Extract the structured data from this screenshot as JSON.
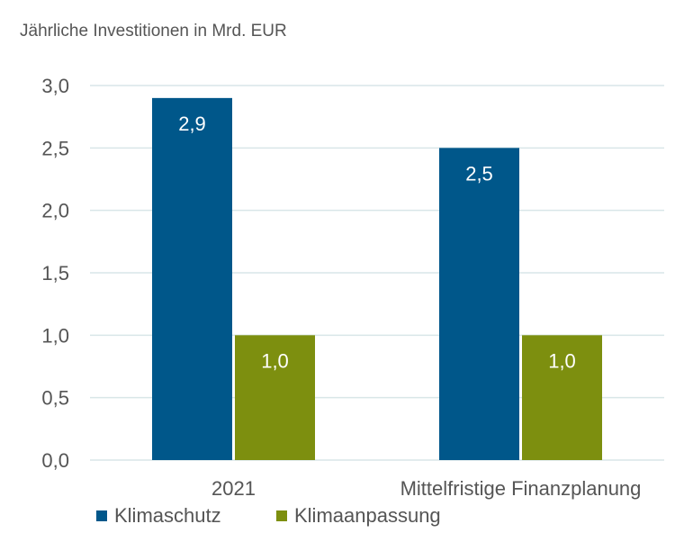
{
  "chart_data": {
    "type": "bar",
    "title": "",
    "ylabel": "Jährliche Investitionen in Mrd. EUR",
    "xlabel": "",
    "categories": [
      "2021",
      "Mittelfristige Finanzplanung"
    ],
    "series": [
      {
        "name": "Klimaschutz",
        "values": [
          2.9,
          2.5
        ],
        "labels": [
          "2,9",
          "2,5"
        ],
        "color": "#00578a"
      },
      {
        "name": "Klimaanpassung",
        "values": [
          1.0,
          1.0
        ],
        "labels": [
          "1,0",
          "1,0"
        ],
        "color": "#7d8f0f"
      }
    ],
    "ylim": [
      0,
      3
    ],
    "yticks": [
      0,
      0.5,
      1.0,
      1.5,
      2.0,
      2.5,
      3.0
    ],
    "ytick_labels": [
      "0,0",
      "0,5",
      "1,0",
      "1,5",
      "2,0",
      "2,5",
      "3,0"
    ],
    "grid": true,
    "legend_position": "bottom-left",
    "colors": {
      "gridline": "#d9e6e8",
      "text": "#555555"
    }
  }
}
